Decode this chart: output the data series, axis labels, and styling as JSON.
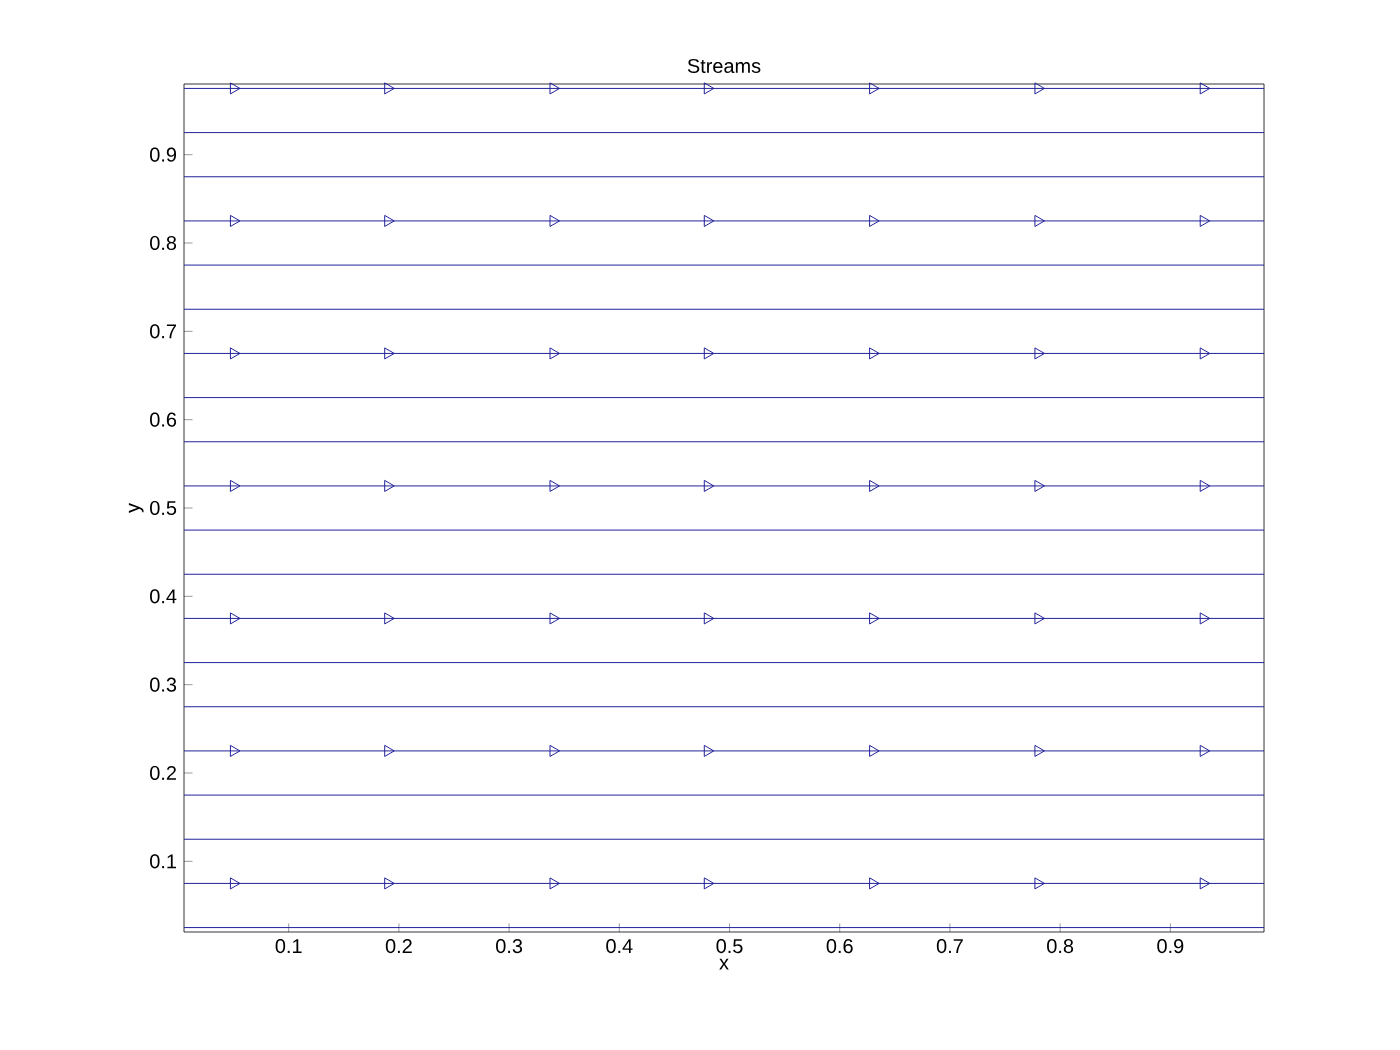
{
  "chart_data": {
    "type": "line",
    "title": "Streams",
    "xlabel": "x",
    "ylabel": "y",
    "xlim": [
      0.005,
      0.985
    ],
    "ylim": [
      0.02,
      0.98
    ],
    "xticks": [
      0.1,
      0.2,
      0.3,
      0.4,
      0.5,
      0.6,
      0.7,
      0.8,
      0.9
    ],
    "yticks": [
      0.1,
      0.2,
      0.3,
      0.4,
      0.5,
      0.6,
      0.7,
      0.8,
      0.9
    ],
    "line_style": "solid",
    "series": [
      {
        "color": "#22229a",
        "x": [
          0.005,
          0.985
        ],
        "values": [
          0.025,
          0.025
        ],
        "marker": "none"
      },
      {
        "color": "#22229a",
        "x": [
          0.005,
          0.05,
          0.19,
          0.34,
          0.48,
          0.63,
          0.78,
          0.93,
          0.985
        ],
        "values": [
          0.075,
          0.075,
          0.075,
          0.075,
          0.075,
          0.075,
          0.075,
          0.075,
          0.075
        ],
        "marker": "triangle"
      },
      {
        "color": "#22229a",
        "x": [
          0.005,
          0.985
        ],
        "values": [
          0.125,
          0.125
        ],
        "marker": "none"
      },
      {
        "color": "#22229a",
        "x": [
          0.005,
          0.985
        ],
        "values": [
          0.175,
          0.175
        ],
        "marker": "none"
      },
      {
        "color": "#22229a",
        "x": [
          0.005,
          0.05,
          0.19,
          0.34,
          0.48,
          0.63,
          0.78,
          0.93,
          0.985
        ],
        "values": [
          0.225,
          0.225,
          0.225,
          0.225,
          0.225,
          0.225,
          0.225,
          0.225,
          0.225
        ],
        "marker": "triangle"
      },
      {
        "color": "#22229a",
        "x": [
          0.005,
          0.985
        ],
        "values": [
          0.275,
          0.275
        ],
        "marker": "none"
      },
      {
        "color": "#22229a",
        "x": [
          0.005,
          0.985
        ],
        "values": [
          0.325,
          0.325
        ],
        "marker": "none"
      },
      {
        "color": "#22229a",
        "x": [
          0.005,
          0.05,
          0.19,
          0.34,
          0.48,
          0.63,
          0.78,
          0.93,
          0.985
        ],
        "values": [
          0.375,
          0.375,
          0.375,
          0.375,
          0.375,
          0.375,
          0.375,
          0.375,
          0.375
        ],
        "marker": "triangle"
      },
      {
        "color": "#22229a",
        "x": [
          0.005,
          0.985
        ],
        "values": [
          0.425,
          0.425
        ],
        "marker": "none"
      },
      {
        "color": "#22229a",
        "x": [
          0.005,
          0.985
        ],
        "values": [
          0.475,
          0.475
        ],
        "marker": "none"
      },
      {
        "color": "#22229a",
        "x": [
          0.005,
          0.05,
          0.19,
          0.34,
          0.48,
          0.63,
          0.78,
          0.93,
          0.985
        ],
        "values": [
          0.525,
          0.525,
          0.525,
          0.525,
          0.525,
          0.525,
          0.525,
          0.525,
          0.525
        ],
        "marker": "triangle"
      },
      {
        "color": "#22229a",
        "x": [
          0.005,
          0.985
        ],
        "values": [
          0.575,
          0.575
        ],
        "marker": "none"
      },
      {
        "color": "#22229a",
        "x": [
          0.005,
          0.985
        ],
        "values": [
          0.625,
          0.625
        ],
        "marker": "none"
      },
      {
        "color": "#22229a",
        "x": [
          0.005,
          0.05,
          0.19,
          0.34,
          0.48,
          0.63,
          0.78,
          0.93,
          0.985
        ],
        "values": [
          0.675,
          0.675,
          0.675,
          0.675,
          0.675,
          0.675,
          0.675,
          0.675,
          0.675
        ],
        "marker": "triangle"
      },
      {
        "color": "#22229a",
        "x": [
          0.005,
          0.985
        ],
        "values": [
          0.725,
          0.725
        ],
        "marker": "none"
      },
      {
        "color": "#22229a",
        "x": [
          0.005,
          0.985
        ],
        "values": [
          0.775,
          0.775
        ],
        "marker": "none"
      },
      {
        "color": "#22229a",
        "x": [
          0.005,
          0.05,
          0.19,
          0.34,
          0.48,
          0.63,
          0.78,
          0.93,
          0.985
        ],
        "values": [
          0.825,
          0.825,
          0.825,
          0.825,
          0.825,
          0.825,
          0.825,
          0.825,
          0.825
        ],
        "marker": "triangle"
      },
      {
        "color": "#22229a",
        "x": [
          0.005,
          0.985
        ],
        "values": [
          0.875,
          0.875
        ],
        "marker": "none"
      },
      {
        "color": "#22229a",
        "x": [
          0.005,
          0.985
        ],
        "values": [
          0.925,
          0.925
        ],
        "marker": "none"
      },
      {
        "color": "#22229a",
        "x": [
          0.005,
          0.05,
          0.19,
          0.34,
          0.48,
          0.63,
          0.78,
          0.93,
          0.985
        ],
        "values": [
          0.975,
          0.975,
          0.975,
          0.975,
          0.975,
          0.975,
          0.975,
          0.975,
          0.975
        ],
        "marker": "triangle"
      }
    ]
  }
}
